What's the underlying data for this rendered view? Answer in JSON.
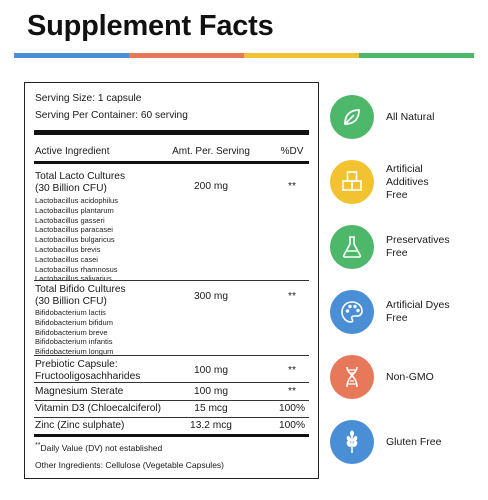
{
  "header": {
    "title": "Supplement Facts",
    "bar_colors": [
      "#4a8fd6",
      "#e8785a",
      "#f2c230",
      "#4db86a"
    ]
  },
  "facts": {
    "serving_size": "Serving Size:  1 capsule",
    "servings_per_container": "Serving Per Container: 60 serving",
    "col_ingredient": "Active Ingredient",
    "col_amount": "Amt. Per. Serving",
    "col_dv": "%DV",
    "rows": [
      {
        "name_line1": "Total Lacto Cultures",
        "name_line2": "(30 Billion CFU)",
        "amount": "200 mg",
        "dv": "**",
        "strains": [
          "Lactobacillus acidophilus",
          "Lactobacillus plantarum",
          "Lactobacillus gasseri",
          "Lactobacillus paracasei",
          "Lactobacillus bulgaricus",
          "Lactobacillus brevis",
          "Lactobacillus casei",
          "Lactobacillus rhamnosus",
          "Lactobacillus salivarius"
        ]
      },
      {
        "name_line1": "Total Bifido Cultures",
        "name_line2": "(30 Billion CFU)",
        "amount": "300 mg",
        "dv": "**",
        "strains": [
          "Bifidobacterium lactis",
          "Bifidobacterium bifidum",
          "Bifidobacterium breve",
          "Bifidobacterium infantis",
          "Bifidobacterium longum"
        ]
      },
      {
        "name_line1": "Prebiotic Capsule:",
        "name_line2": "Fructooligosachharides",
        "amount": "100 mg",
        "dv": "**"
      },
      {
        "name_line1": "Magnesium Sterate",
        "amount": "100 mg",
        "dv": "**"
      },
      {
        "name_line1": "Vitamin D3 (Chloecalciferol)",
        "amount": "15 mcg",
        "dv": "100%"
      },
      {
        "name_line1": "Zinc (Zinc sulphate)",
        "amount": "13.2 mcg",
        "dv": "100%"
      }
    ],
    "footnote_mark": "**",
    "footnote_text": "Daily Value (DV) not established",
    "other_ingredients": "Other Ingredients: Cellulose (Vegetable Capsules)"
  },
  "badges": [
    {
      "icon": "leaf-icon",
      "color": "#4db86a",
      "line1": "All Natural",
      "line2": ""
    },
    {
      "icon": "cubes-icon",
      "color": "#f2c230",
      "line1": "Artificial",
      "line2": "Additives",
      "line3": "Free"
    },
    {
      "icon": "flask-icon",
      "color": "#4db86a",
      "line1": "Preservatives",
      "line2": "Free"
    },
    {
      "icon": "palette-icon",
      "color": "#4a8fd6",
      "line1": "Artificial Dyes",
      "line2": "Free"
    },
    {
      "icon": "dna-icon",
      "color": "#e8785a",
      "line1": "Non-GMO",
      "line2": ""
    },
    {
      "icon": "wheat-icon",
      "color": "#4a8fd6",
      "line1": "Gluten Free",
      "line2": ""
    }
  ]
}
